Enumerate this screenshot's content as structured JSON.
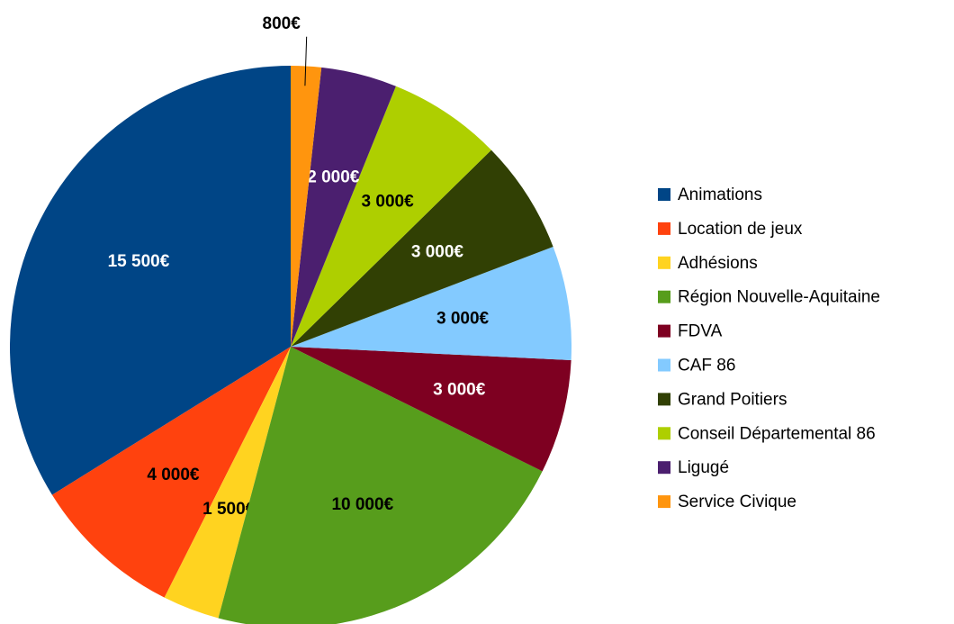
{
  "chart_data": {
    "type": "pie",
    "categories": [
      "Animations",
      "Location de jeux",
      "Adhésions",
      "Région Nouvelle-Aquitaine",
      "FDVA",
      "CAF 86",
      "Grand Poitiers",
      "Conseil Départemental 86",
      "Ligugé",
      "Service Civique"
    ],
    "values": [
      15500,
      4000,
      1500,
      10000,
      3000,
      3000,
      3000,
      3000,
      2000,
      800
    ],
    "value_labels": [
      "15 500€",
      "4 000€",
      "1 500€",
      "10 000€",
      "3 000€",
      "3 000€",
      "3 000€",
      "3 000€",
      "2 000€",
      "800€"
    ],
    "colors": [
      "#004586",
      "#ff420e",
      "#ffd320",
      "#579d1c",
      "#7e0021",
      "#83caff",
      "#314004",
      "#aecf00",
      "#4b1f6f",
      "#ff950e"
    ],
    "legend": "right"
  }
}
